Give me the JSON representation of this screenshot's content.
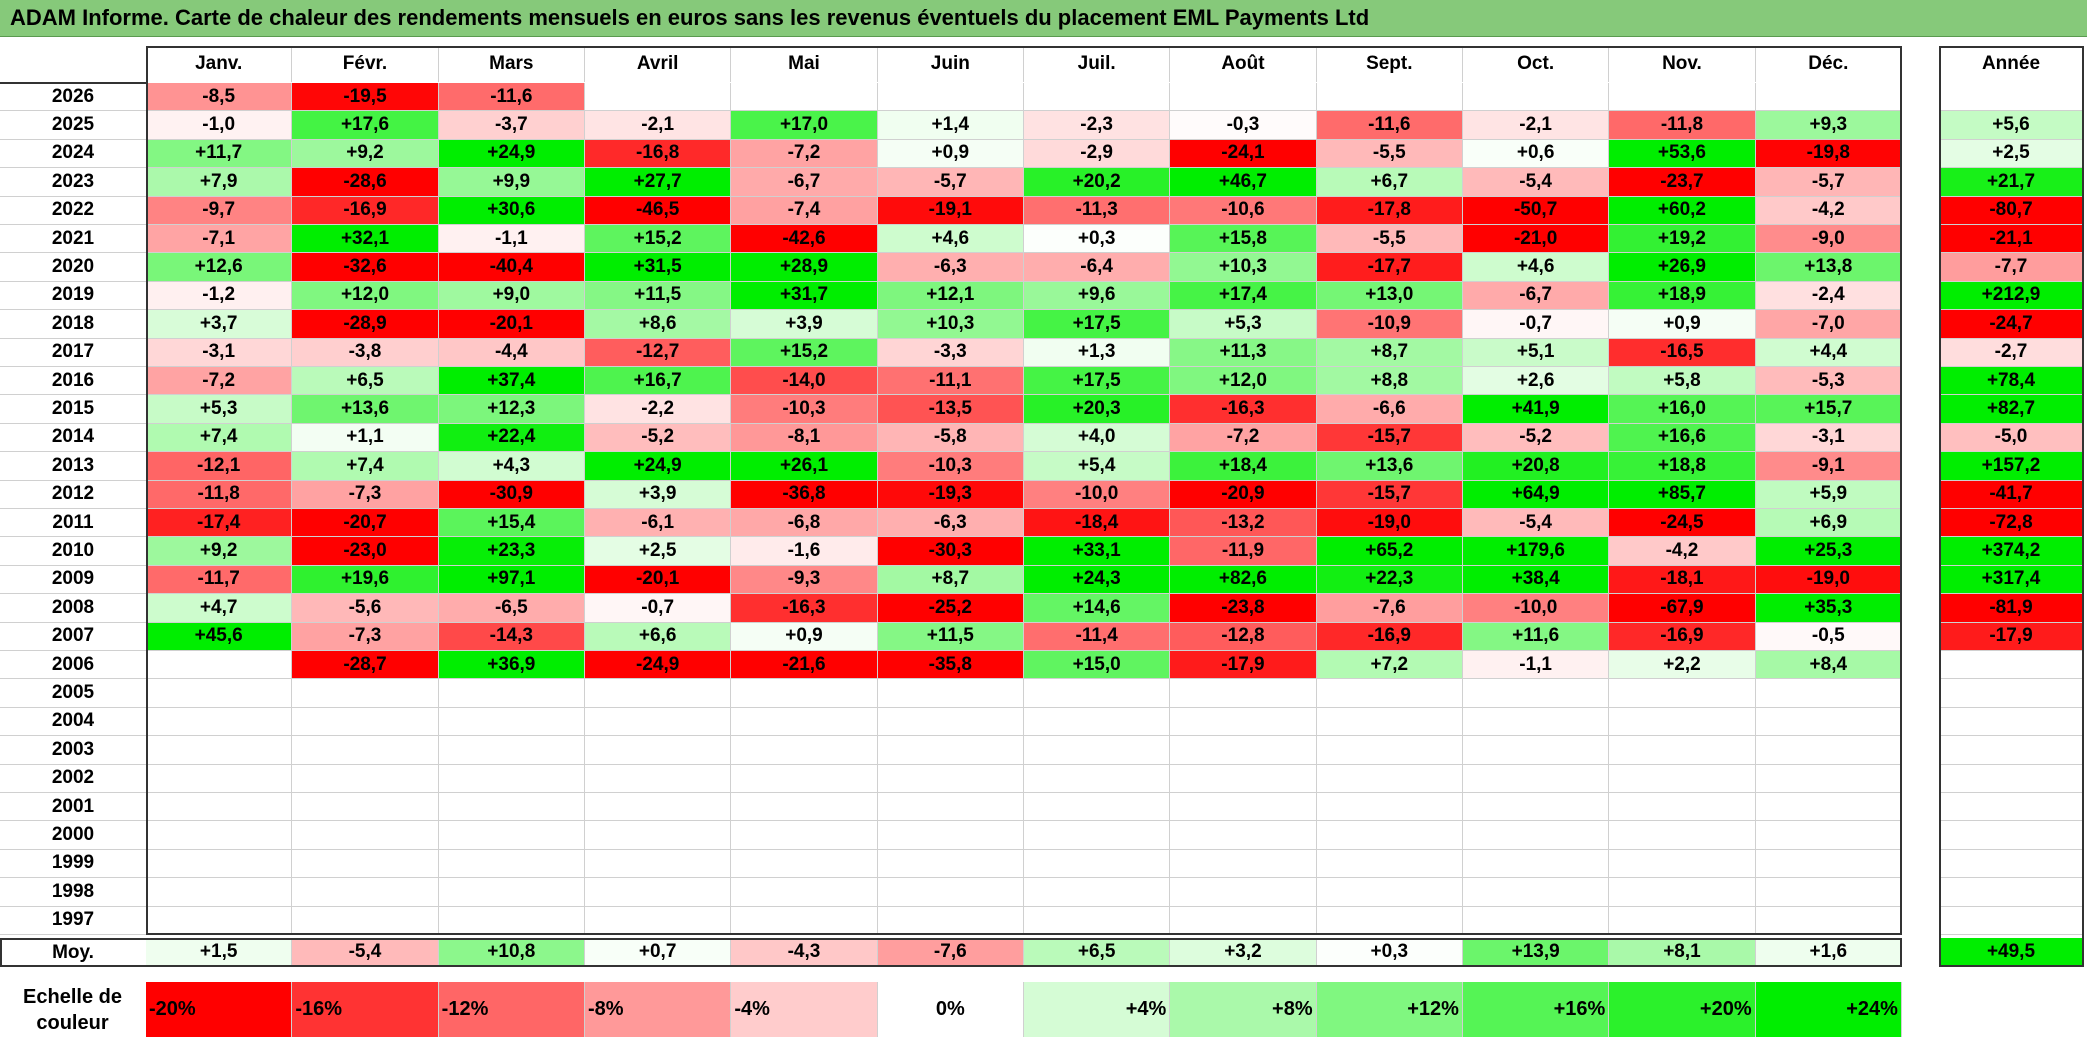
{
  "title": "ADAM Informe. Carte de chaleur des rendements mensuels en euros sans les revenus éventuels du placement EML Payments Ltd",
  "chart_data": {
    "type": "heatmap",
    "title": "ADAM Informe. Carte de chaleur des rendements mensuels en euros sans les revenus éventuels du placement EML Payments Ltd",
    "months": [
      "Janv.",
      "Févr.",
      "Mars",
      "Avril",
      "Mai",
      "Juin",
      "Juil.",
      "Août",
      "Sept.",
      "Oct.",
      "Nov.",
      "Déc."
    ],
    "year_header": "Année",
    "rows": [
      {
        "year": "2026",
        "m": [
          "-8,5",
          "-19,5",
          "-11,6",
          "",
          "",
          "",
          "",
          "",
          "",
          "",
          "",
          ""
        ],
        "y": ""
      },
      {
        "year": "2025",
        "m": [
          "-1,0",
          "+17,6",
          "-3,7",
          "-2,1",
          "+17,0",
          "+1,4",
          "-2,3",
          "-0,3",
          "-11,6",
          "-2,1",
          "-11,8",
          "+9,3"
        ],
        "y": "+5,6"
      },
      {
        "year": "2024",
        "m": [
          "+11,7",
          "+9,2",
          "+24,9",
          "-16,8",
          "-7,2",
          "+0,9",
          "-2,9",
          "-24,1",
          "-5,5",
          "+0,6",
          "+53,6",
          "-19,8"
        ],
        "y": "+2,5"
      },
      {
        "year": "2023",
        "m": [
          "+7,9",
          "-28,6",
          "+9,9",
          "+27,7",
          "-6,7",
          "-5,7",
          "+20,2",
          "+46,7",
          "+6,7",
          "-5,4",
          "-23,7",
          "-5,7"
        ],
        "y": "+21,7"
      },
      {
        "year": "2022",
        "m": [
          "-9,7",
          "-16,9",
          "+30,6",
          "-46,5",
          "-7,4",
          "-19,1",
          "-11,3",
          "-10,6",
          "-17,8",
          "-50,7",
          "+60,2",
          "-4,2"
        ],
        "y": "-80,7"
      },
      {
        "year": "2021",
        "m": [
          "-7,1",
          "+32,1",
          "-1,1",
          "+15,2",
          "-42,6",
          "+4,6",
          "+0,3",
          "+15,8",
          "-5,5",
          "-21,0",
          "+19,2",
          "-9,0"
        ],
        "y": "-21,1"
      },
      {
        "year": "2020",
        "m": [
          "+12,6",
          "-32,6",
          "-40,4",
          "+31,5",
          "+28,9",
          "-6,3",
          "-6,4",
          "+10,3",
          "-17,7",
          "+4,6",
          "+26,9",
          "+13,8"
        ],
        "y": "-7,7"
      },
      {
        "year": "2019",
        "m": [
          "-1,2",
          "+12,0",
          "+9,0",
          "+11,5",
          "+31,7",
          "+12,1",
          "+9,6",
          "+17,4",
          "+13,0",
          "-6,7",
          "+18,9",
          "-2,4"
        ],
        "y": "+212,9"
      },
      {
        "year": "2018",
        "m": [
          "+3,7",
          "-28,9",
          "-20,1",
          "+8,6",
          "+3,9",
          "+10,3",
          "+17,5",
          "+5,3",
          "-10,9",
          "-0,7",
          "+0,9",
          "-7,0"
        ],
        "y": "-24,7"
      },
      {
        "year": "2017",
        "m": [
          "-3,1",
          "-3,8",
          "-4,4",
          "-12,7",
          "+15,2",
          "-3,3",
          "+1,3",
          "+11,3",
          "+8,7",
          "+5,1",
          "-16,5",
          "+4,4"
        ],
        "y": "-2,7"
      },
      {
        "year": "2016",
        "m": [
          "-7,2",
          "+6,5",
          "+37,4",
          "+16,7",
          "-14,0",
          "-11,1",
          "+17,5",
          "+12,0",
          "+8,8",
          "+2,6",
          "+5,8",
          "-5,3"
        ],
        "y": "+78,4"
      },
      {
        "year": "2015",
        "m": [
          "+5,3",
          "+13,6",
          "+12,3",
          "-2,2",
          "-10,3",
          "-13,5",
          "+20,3",
          "-16,3",
          "-6,6",
          "+41,9",
          "+16,0",
          "+15,7"
        ],
        "y": "+82,7"
      },
      {
        "year": "2014",
        "m": [
          "+7,4",
          "+1,1",
          "+22,4",
          "-5,2",
          "-8,1",
          "-5,8",
          "+4,0",
          "-7,2",
          "-15,7",
          "-5,2",
          "+16,6",
          "-3,1"
        ],
        "y": "-5,0"
      },
      {
        "year": "2013",
        "m": [
          "-12,1",
          "+7,4",
          "+4,3",
          "+24,9",
          "+26,1",
          "-10,3",
          "+5,4",
          "+18,4",
          "+13,6",
          "+20,8",
          "+18,8",
          "-9,1"
        ],
        "y": "+157,2"
      },
      {
        "year": "2012",
        "m": [
          "-11,8",
          "-7,3",
          "-30,9",
          "+3,9",
          "-36,8",
          "-19,3",
          "-10,0",
          "-20,9",
          "-15,7",
          "+64,9",
          "+85,7",
          "+5,9"
        ],
        "y": "-41,7"
      },
      {
        "year": "2011",
        "m": [
          "-17,4",
          "-20,7",
          "+15,4",
          "-6,1",
          "-6,8",
          "-6,3",
          "-18,4",
          "-13,2",
          "-19,0",
          "-5,4",
          "-24,5",
          "+6,9"
        ],
        "y": "-72,8"
      },
      {
        "year": "2010",
        "m": [
          "+9,2",
          "-23,0",
          "+23,3",
          "+2,5",
          "-1,6",
          "-30,3",
          "+33,1",
          "-11,9",
          "+65,2",
          "+179,6",
          "-4,2",
          "+25,3"
        ],
        "y": "+374,2"
      },
      {
        "year": "2009",
        "m": [
          "-11,7",
          "+19,6",
          "+97,1",
          "-20,1",
          "-9,3",
          "+8,7",
          "+24,3",
          "+82,6",
          "+22,3",
          "+38,4",
          "-18,1",
          "-19,0"
        ],
        "y": "+317,4"
      },
      {
        "year": "2008",
        "m": [
          "+4,7",
          "-5,6",
          "-6,5",
          "-0,7",
          "-16,3",
          "-25,2",
          "+14,6",
          "-23,8",
          "-7,6",
          "-10,0",
          "-67,9",
          "+35,3"
        ],
        "y": "-81,9"
      },
      {
        "year": "2007",
        "m": [
          "+45,6",
          "-7,3",
          "-14,3",
          "+6,6",
          "+0,9",
          "+11,5",
          "-11,4",
          "-12,8",
          "-16,9",
          "+11,6",
          "-16,9",
          "-0,5"
        ],
        "y": "-17,9"
      },
      {
        "year": "2006",
        "m": [
          "",
          "-28,7",
          "+36,9",
          "-24,9",
          "-21,6",
          "-35,8",
          "+15,0",
          "-17,9",
          "+7,2",
          "-1,1",
          "+2,2",
          "+8,4"
        ],
        "y": ""
      },
      {
        "year": "2005",
        "m": [
          "",
          "",
          "",
          "",
          "",
          "",
          "",
          "",
          "",
          "",
          "",
          ""
        ],
        "y": ""
      },
      {
        "year": "2004",
        "m": [
          "",
          "",
          "",
          "",
          "",
          "",
          "",
          "",
          "",
          "",
          "",
          ""
        ],
        "y": ""
      },
      {
        "year": "2003",
        "m": [
          "",
          "",
          "",
          "",
          "",
          "",
          "",
          "",
          "",
          "",
          "",
          ""
        ],
        "y": ""
      },
      {
        "year": "2002",
        "m": [
          "",
          "",
          "",
          "",
          "",
          "",
          "",
          "",
          "",
          "",
          "",
          ""
        ],
        "y": ""
      },
      {
        "year": "2001",
        "m": [
          "",
          "",
          "",
          "",
          "",
          "",
          "",
          "",
          "",
          "",
          "",
          ""
        ],
        "y": ""
      },
      {
        "year": "2000",
        "m": [
          "",
          "",
          "",
          "",
          "",
          "",
          "",
          "",
          "",
          "",
          "",
          ""
        ],
        "y": ""
      },
      {
        "year": "1999",
        "m": [
          "",
          "",
          "",
          "",
          "",
          "",
          "",
          "",
          "",
          "",
          "",
          ""
        ],
        "y": ""
      },
      {
        "year": "1998",
        "m": [
          "",
          "",
          "",
          "",
          "",
          "",
          "",
          "",
          "",
          "",
          "",
          ""
        ],
        "y": ""
      },
      {
        "year": "1997",
        "m": [
          "",
          "",
          "",
          "",
          "",
          "",
          "",
          "",
          "",
          "",
          "",
          ""
        ],
        "y": ""
      }
    ],
    "average": {
      "label": "Moy.",
      "m": [
        "+1,5",
        "-5,4",
        "+10,8",
        "+0,7",
        "-4,3",
        "-7,6",
        "+6,5",
        "+3,2",
        "+0,3",
        "+13,9",
        "+8,1",
        "+1,6"
      ],
      "y": "+49,5"
    },
    "color_scale": {
      "label_line1": "Echelle de",
      "label_line2": "couleur",
      "steps": [
        "-20%",
        "-16%",
        "-12%",
        "-8%",
        "-4%",
        "0%",
        "+4%",
        "+8%",
        "+12%",
        "+16%",
        "+20%",
        "+24%"
      ],
      "negative_color": "#ff0000",
      "neutral_color": "#ffffff",
      "positive_color": "#00ee00"
    }
  }
}
